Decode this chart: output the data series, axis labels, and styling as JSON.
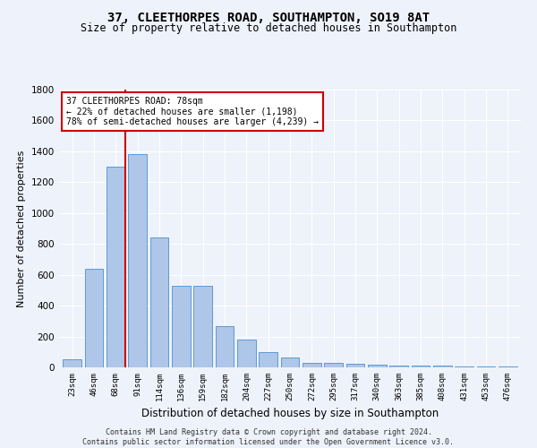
{
  "title": "37, CLEETHORPES ROAD, SOUTHAMPTON, SO19 8AT",
  "subtitle": "Size of property relative to detached houses in Southampton",
  "xlabel": "Distribution of detached houses by size in Southampton",
  "ylabel": "Number of detached properties",
  "categories": [
    "23sqm",
    "46sqm",
    "68sqm",
    "91sqm",
    "114sqm",
    "136sqm",
    "159sqm",
    "182sqm",
    "204sqm",
    "227sqm",
    "250sqm",
    "272sqm",
    "295sqm",
    "317sqm",
    "340sqm",
    "363sqm",
    "385sqm",
    "408sqm",
    "431sqm",
    "453sqm",
    "476sqm"
  ],
  "values": [
    50,
    640,
    1300,
    1380,
    840,
    530,
    530,
    270,
    180,
    100,
    65,
    30,
    30,
    25,
    15,
    10,
    10,
    10,
    5,
    5,
    5
  ],
  "bar_color": "#aec6e8",
  "bar_edge_color": "#5b9bd5",
  "red_line_color": "#cc0000",
  "annotation_box_color": "#ffffff",
  "annotation_box_edge": "#cc0000",
  "property_line_label": "37 CLEETHORPES ROAD: 78sqm",
  "annotation_line1": "← 22% of detached houses are smaller (1,198)",
  "annotation_line2": "78% of semi-detached houses are larger (4,239) →",
  "ylim": [
    0,
    1800
  ],
  "yticks": [
    0,
    200,
    400,
    600,
    800,
    1000,
    1200,
    1400,
    1600,
    1800
  ],
  "background_color": "#eef2fa",
  "grid_color": "#ffffff",
  "footer_line1": "Contains HM Land Registry data © Crown copyright and database right 2024.",
  "footer_line2": "Contains public sector information licensed under the Open Government Licence v3.0.",
  "title_fontsize": 10,
  "subtitle_fontsize": 8.5,
  "xlabel_fontsize": 8.5,
  "ylabel_fontsize": 8
}
